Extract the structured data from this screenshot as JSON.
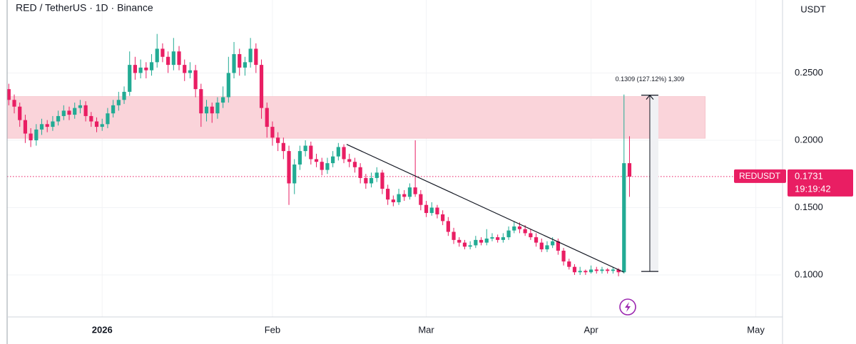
{
  "chart_data": {
    "type": "candlestick",
    "title": "RED / TetherUS · 1D · Binance",
    "y_axis_label": "USDT",
    "up_color": "#22ab94",
    "down_color": "#e91e63",
    "ohlc": [
      [
        0.238,
        0.242,
        0.226,
        0.23
      ],
      [
        0.23,
        0.234,
        0.22,
        0.225
      ],
      [
        0.225,
        0.228,
        0.21,
        0.215
      ],
      [
        0.215,
        0.219,
        0.198,
        0.205
      ],
      [
        0.205,
        0.209,
        0.195,
        0.2
      ],
      [
        0.2,
        0.212,
        0.196,
        0.208
      ],
      [
        0.208,
        0.216,
        0.204,
        0.212
      ],
      [
        0.212,
        0.215,
        0.206,
        0.21
      ],
      [
        0.21,
        0.218,
        0.207,
        0.214
      ],
      [
        0.214,
        0.222,
        0.211,
        0.218
      ],
      [
        0.218,
        0.226,
        0.215,
        0.222
      ],
      [
        0.222,
        0.225,
        0.215,
        0.219
      ],
      [
        0.219,
        0.228,
        0.216,
        0.224
      ],
      [
        0.224,
        0.23,
        0.22,
        0.226
      ],
      [
        0.226,
        0.229,
        0.214,
        0.218
      ],
      [
        0.218,
        0.221,
        0.21,
        0.214
      ],
      [
        0.214,
        0.217,
        0.206,
        0.21
      ],
      [
        0.21,
        0.216,
        0.207,
        0.212
      ],
      [
        0.212,
        0.224,
        0.209,
        0.22
      ],
      [
        0.22,
        0.23,
        0.217,
        0.226
      ],
      [
        0.226,
        0.236,
        0.222,
        0.23
      ],
      [
        0.23,
        0.24,
        0.227,
        0.236
      ],
      [
        0.236,
        0.266,
        0.233,
        0.256
      ],
      [
        0.256,
        0.262,
        0.245,
        0.25
      ],
      [
        0.25,
        0.26,
        0.246,
        0.254
      ],
      [
        0.254,
        0.258,
        0.246,
        0.252
      ],
      [
        0.252,
        0.264,
        0.248,
        0.258
      ],
      [
        0.258,
        0.279,
        0.254,
        0.268
      ],
      [
        0.268,
        0.272,
        0.258,
        0.262
      ],
      [
        0.262,
        0.266,
        0.25,
        0.256
      ],
      [
        0.256,
        0.276,
        0.252,
        0.266
      ],
      [
        0.266,
        0.27,
        0.252,
        0.256
      ],
      [
        0.256,
        0.26,
        0.244,
        0.25
      ],
      [
        0.25,
        0.258,
        0.246,
        0.252
      ],
      [
        0.252,
        0.256,
        0.232,
        0.238
      ],
      [
        0.238,
        0.242,
        0.21,
        0.22
      ],
      [
        0.22,
        0.23,
        0.214,
        0.225
      ],
      [
        0.225,
        0.228,
        0.213,
        0.22
      ],
      [
        0.22,
        0.232,
        0.216,
        0.228
      ],
      [
        0.228,
        0.24,
        0.224,
        0.232
      ],
      [
        0.232,
        0.262,
        0.228,
        0.25
      ],
      [
        0.25,
        0.273,
        0.246,
        0.264
      ],
      [
        0.264,
        0.268,
        0.248,
        0.254
      ],
      [
        0.254,
        0.262,
        0.248,
        0.258
      ],
      [
        0.258,
        0.276,
        0.254,
        0.268
      ],
      [
        0.268,
        0.272,
        0.25,
        0.256
      ],
      [
        0.256,
        0.26,
        0.216,
        0.224
      ],
      [
        0.224,
        0.228,
        0.202,
        0.21
      ],
      [
        0.21,
        0.214,
        0.196,
        0.202
      ],
      [
        0.202,
        0.206,
        0.192,
        0.198
      ],
      [
        0.198,
        0.202,
        0.186,
        0.192
      ],
      [
        0.192,
        0.196,
        0.152,
        0.168
      ],
      [
        0.168,
        0.186,
        0.16,
        0.182
      ],
      [
        0.182,
        0.196,
        0.178,
        0.192
      ],
      [
        0.192,
        0.2,
        0.188,
        0.196
      ],
      [
        0.196,
        0.199,
        0.182,
        0.186
      ],
      [
        0.186,
        0.19,
        0.18,
        0.184
      ],
      [
        0.184,
        0.187,
        0.174,
        0.178
      ],
      [
        0.178,
        0.187,
        0.175,
        0.183
      ],
      [
        0.183,
        0.192,
        0.18,
        0.188
      ],
      [
        0.188,
        0.198,
        0.185,
        0.195
      ],
      [
        0.195,
        0.197,
        0.183,
        0.186
      ],
      [
        0.186,
        0.19,
        0.18,
        0.184
      ],
      [
        0.184,
        0.187,
        0.176,
        0.18
      ],
      [
        0.18,
        0.183,
        0.168,
        0.172
      ],
      [
        0.172,
        0.175,
        0.164,
        0.168
      ],
      [
        0.168,
        0.176,
        0.165,
        0.172
      ],
      [
        0.172,
        0.18,
        0.169,
        0.176
      ],
      [
        0.176,
        0.178,
        0.16,
        0.164
      ],
      [
        0.164,
        0.167,
        0.152,
        0.156
      ],
      [
        0.156,
        0.159,
        0.151,
        0.154
      ],
      [
        0.154,
        0.164,
        0.152,
        0.16
      ],
      [
        0.16,
        0.163,
        0.155,
        0.158
      ],
      [
        0.158,
        0.168,
        0.156,
        0.165
      ],
      [
        0.165,
        0.2,
        0.158,
        0.16
      ],
      [
        0.16,
        0.163,
        0.148,
        0.152
      ],
      [
        0.152,
        0.155,
        0.143,
        0.146
      ],
      [
        0.146,
        0.154,
        0.144,
        0.15
      ],
      [
        0.15,
        0.152,
        0.142,
        0.145
      ],
      [
        0.145,
        0.148,
        0.137,
        0.14
      ],
      [
        0.14,
        0.143,
        0.129,
        0.132
      ],
      [
        0.132,
        0.135,
        0.123,
        0.126
      ],
      [
        0.126,
        0.128,
        0.121,
        0.124
      ],
      [
        0.124,
        0.126,
        0.119,
        0.121
      ],
      [
        0.121,
        0.125,
        0.119,
        0.122
      ],
      [
        0.122,
        0.129,
        0.12,
        0.126
      ],
      [
        0.126,
        0.128,
        0.122,
        0.124
      ],
      [
        0.124,
        0.134,
        0.122,
        0.127
      ],
      [
        0.127,
        0.131,
        0.125,
        0.128
      ],
      [
        0.128,
        0.13,
        0.124,
        0.126
      ],
      [
        0.126,
        0.131,
        0.124,
        0.128
      ],
      [
        0.128,
        0.136,
        0.126,
        0.133
      ],
      [
        0.133,
        0.14,
        0.131,
        0.136
      ],
      [
        0.136,
        0.139,
        0.131,
        0.134
      ],
      [
        0.134,
        0.137,
        0.129,
        0.131
      ],
      [
        0.131,
        0.134,
        0.126,
        0.128
      ],
      [
        0.128,
        0.131,
        0.121,
        0.124
      ],
      [
        0.124,
        0.127,
        0.117,
        0.119
      ],
      [
        0.119,
        0.125,
        0.117,
        0.122
      ],
      [
        0.122,
        0.128,
        0.12,
        0.125
      ],
      [
        0.125,
        0.127,
        0.115,
        0.118
      ],
      [
        0.118,
        0.12,
        0.107,
        0.11
      ],
      [
        0.11,
        0.112,
        0.104,
        0.106
      ],
      [
        0.106,
        0.108,
        0.1,
        0.102
      ],
      [
        0.102,
        0.106,
        0.1,
        0.103
      ],
      [
        0.103,
        0.104,
        0.1,
        0.102
      ],
      [
        0.102,
        0.107,
        0.101,
        0.104
      ],
      [
        0.104,
        0.106,
        0.101,
        0.103
      ],
      [
        0.103,
        0.106,
        0.101,
        0.104
      ],
      [
        0.104,
        0.105,
        0.101,
        0.103
      ],
      [
        0.103,
        0.106,
        0.101,
        0.104
      ],
      [
        0.104,
        0.105,
        0.099,
        0.102
      ],
      [
        0.102,
        0.234,
        0.101,
        0.183
      ],
      [
        0.183,
        0.203,
        0.158,
        0.173
      ]
    ],
    "xlim": [
      -0.3,
      140.6
    ],
    "xticks": [
      {
        "value": 17,
        "label": "2026"
      },
      {
        "value": 48,
        "label": "Feb"
      },
      {
        "value": 76,
        "label": "Mar"
      },
      {
        "value": 106,
        "label": "Apr"
      },
      {
        "value": 136,
        "label": "May"
      }
    ],
    "ylim": [
      0.0688,
      0.3042
    ],
    "yticks": [
      {
        "value": 0.1,
        "label": "0.1000"
      },
      {
        "value": 0.15,
        "label": "0.1500"
      },
      {
        "value": 0.2,
        "label": "0.2000"
      },
      {
        "value": 0.25,
        "label": "0.2500"
      }
    ],
    "grid": true,
    "zone": {
      "from": 0.2015,
      "to": 0.2325,
      "x_end": 126.8,
      "color": "#fad4da"
    },
    "trendline": {
      "x": [
        61.5,
        112
      ],
      "y": [
        0.197,
        0.102
      ]
    },
    "measure": {
      "x": 116.7,
      "from": 0.1026,
      "to": 0.2335,
      "label": "0.1309 (127.12%) 1,309"
    },
    "last_price": {
      "symbol": "REDUSDT",
      "value": 0.1731,
      "countdown": "19:19:42",
      "color": "#e91e63"
    }
  }
}
